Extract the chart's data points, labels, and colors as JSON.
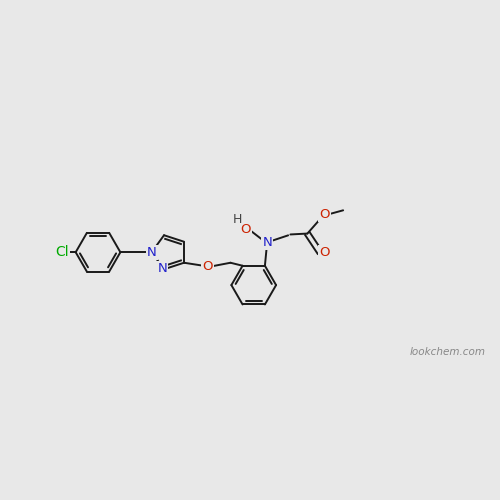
{
  "bg_color": "#e8e8e8",
  "bond_color": "#1a1a1a",
  "N_color": "#2222cc",
  "O_color": "#cc2200",
  "Cl_color": "#00aa00",
  "H_color": "#444444",
  "lw": 1.4,
  "watermark": "lookchem.com",
  "xlim": [
    -0.5,
    10.5
  ],
  "ylim": [
    2.8,
    7.8
  ]
}
